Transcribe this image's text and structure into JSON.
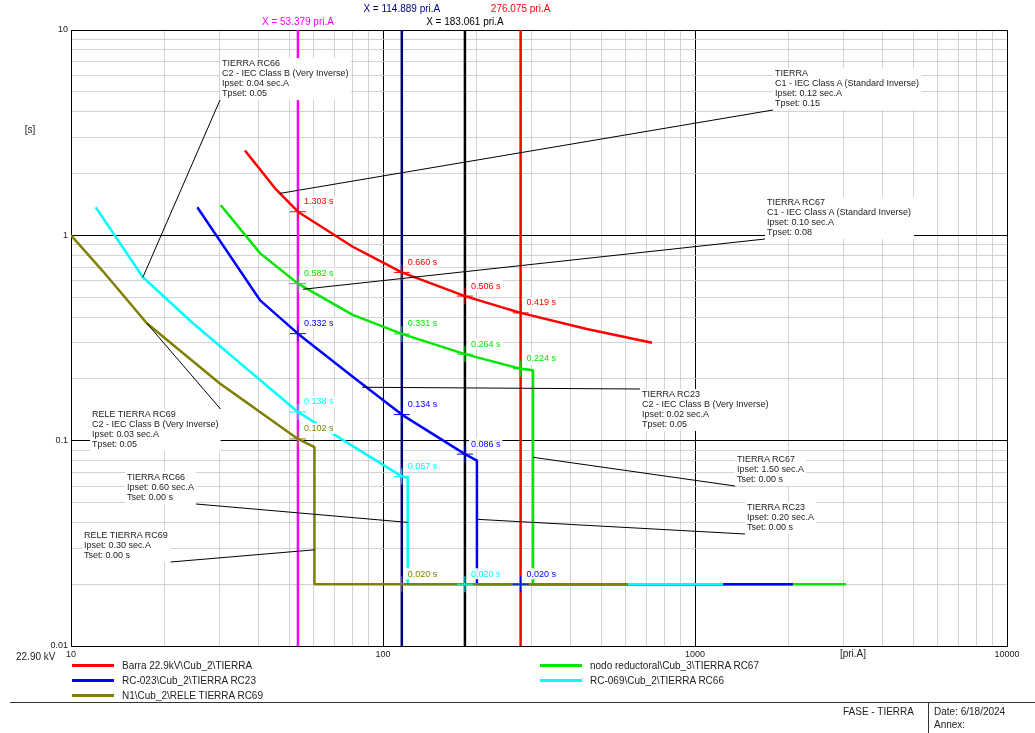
{
  "chart_data": {
    "type": "line",
    "xlabel": "[pri.A]",
    "ylabel": "[s]",
    "log": "xy",
    "grid": true,
    "legend": "bottom",
    "xlim": [
      10,
      10000
    ],
    "ylim": [
      0.01,
      10
    ],
    "xticks": [
      10,
      {
        "value": 20,
        "label": null
      },
      {
        "value": 30,
        "label": null
      },
      {
        "value": 40,
        "label": null
      },
      {
        "value": 50,
        "label": null
      },
      {
        "value": 60,
        "label": null
      },
      {
        "value": 70,
        "label": null
      },
      {
        "value": 80,
        "label": null
      },
      {
        "value": 90,
        "label": null
      },
      100,
      {
        "value": 200,
        "label": null
      },
      {
        "value": 300,
        "label": null
      },
      {
        "value": 400,
        "label": null
      },
      {
        "value": 500,
        "label": null
      },
      {
        "value": 600,
        "label": null
      },
      {
        "value": 700,
        "label": null
      },
      {
        "value": 800,
        "label": null
      },
      {
        "value": 900,
        "label": null
      },
      1000,
      {
        "value": 2000,
        "label": null
      },
      {
        "value": 3000,
        "label": null
      },
      {
        "value": 4000,
        "label": null
      },
      {
        "value": 5000,
        "label": null
      },
      {
        "value": 6000,
        "label": null
      },
      {
        "value": 7000,
        "label": null
      },
      {
        "value": 8000,
        "label": null
      },
      {
        "value": 9000,
        "label": null
      },
      10000
    ],
    "yticks": [
      0.01,
      {
        "value": 0.02,
        "label": null
      },
      {
        "value": 0.03,
        "label": null
      },
      {
        "value": 0.04,
        "label": null
      },
      {
        "value": 0.05,
        "label": null
      },
      {
        "value": 0.06,
        "label": null
      },
      {
        "value": 0.07,
        "label": null
      },
      {
        "value": 0.08,
        "label": null
      },
      {
        "value": 0.09,
        "label": null
      },
      0.1,
      {
        "value": 0.2,
        "label": null
      },
      {
        "value": 0.3,
        "label": null
      },
      {
        "value": 0.4,
        "label": null
      },
      {
        "value": 0.5,
        "label": null
      },
      {
        "value": 0.6,
        "label": null
      },
      {
        "value": 0.7,
        "label": null
      },
      {
        "value": 0.8,
        "label": null
      },
      {
        "value": 0.9,
        "label": null
      },
      1,
      {
        "value": 2,
        "label": null
      },
      {
        "value": 3,
        "label": null
      },
      {
        "value": 4,
        "label": null
      },
      {
        "value": 5,
        "label": null
      },
      {
        "value": 6,
        "label": null
      },
      {
        "value": 7,
        "label": null
      },
      {
        "value": 8,
        "label": null
      },
      {
        "value": 9,
        "label": null
      },
      10
    ],
    "series": [
      {
        "name": "Barra 22.9kV\\Cub_2\\TIERRA",
        "color": "#ff0000",
        "x": [
          36.1,
          45,
          53.379,
          80,
          114.889,
          183.061,
          276.075,
          450,
          728
        ],
        "values": [
          2.59,
          1.7,
          1.303,
          0.88,
          0.66,
          0.506,
          0.419,
          0.35,
          0.3
        ],
        "value_labels": [
          null,
          null,
          "1.303 s",
          null,
          "0.660 s",
          "0.506 s",
          "0.419 s",
          null,
          null
        ]
      },
      {
        "name": "nodo reductoral\\Cub_3\\TIERRA RC67",
        "color": "#00e600",
        "x": [
          30.2,
          40.4,
          53.379,
          80,
          114.889,
          183.061,
          276.075,
          302.6,
          302.6,
          3048
        ],
        "values": [
          1.4,
          0.817,
          0.582,
          0.41,
          0.331,
          0.264,
          0.224,
          0.22,
          0.02,
          0.02
        ],
        "value_labels": [
          null,
          null,
          "0.582 s",
          null,
          "0.331 s",
          "0.264 s",
          "0.224 s",
          null,
          null,
          null
        ]
      },
      {
        "name": "RC-023\\Cub_2\\TIERRA RC23",
        "color": "#0000ff",
        "x": [
          25.4,
          40.4,
          53.379,
          80,
          114.889,
          183.061,
          200,
          200,
          276.075,
          2060
        ],
        "values": [
          1.37,
          0.482,
          0.332,
          0.205,
          0.134,
          0.086,
          0.08,
          0.02,
          0.02,
          0.02
        ],
        "value_labels": [
          null,
          null,
          "0.332 s",
          null,
          "0.134 s",
          "0.086 s",
          null,
          null,
          "0.020 s",
          null
        ]
      },
      {
        "name": "RC-069\\Cub_2\\TIERRA RC66",
        "color": "#00ffff",
        "x": [
          12,
          17,
          24.6,
          53.379,
          80,
          114.889,
          120,
          120,
          183.061,
          1230
        ],
        "values": [
          1.37,
          0.625,
          0.373,
          0.138,
          0.094,
          0.067,
          0.066,
          0.02,
          0.02,
          0.02
        ],
        "value_labels": [
          null,
          null,
          null,
          "0.138 s",
          null,
          "0.067 s",
          null,
          null,
          "0.020 s",
          null
        ]
      },
      {
        "name": "N1\\Cub_2\\RELE TIERRA RC69",
        "color": "#808000",
        "x": [
          10,
          12.66,
          17.5,
          30,
          53.379,
          60.3,
          60.3,
          114.889,
          610
        ],
        "values": [
          1.0,
          0.668,
          0.373,
          0.19,
          0.102,
          0.093,
          0.02,
          0.02,
          0.02
        ],
        "value_labels": [
          null,
          null,
          null,
          null,
          "0.102 s",
          null,
          null,
          "0.020 s",
          null
        ]
      }
    ],
    "ref_lines": [
      {
        "axis": "x",
        "value": 53.379,
        "label": "X = 53.379 pri.A",
        "color": "#ff00ff"
      },
      {
        "axis": "x",
        "value": 114.889,
        "label": "X = 114.889 pri.A",
        "color": "#000080"
      },
      {
        "axis": "x",
        "value": 183.061,
        "label": "X = 183.061 pri.A",
        "color": "#000000"
      },
      {
        "axis": "x",
        "value": 276.075,
        "label": "276.075 pri.A",
        "color": "#ff0000"
      }
    ],
    "annotations": [
      {
        "text": "TIERRA RC66\nC2 - IEC Class B (Very Inverse)\nIpset: 0.04 sec.A\nTpset: 0.05",
        "x": 17,
        "y": 0.625
      },
      {
        "text": "TIERRA\nC1 - IEC Class A (Standard Inverse)\nIpset: 0.12 sec.A\nTpset: 0.15",
        "x": 46.7,
        "y": 1.6
      },
      {
        "text": "TIERRA RC67\nC1 - IEC Class A (Standard Inverse)\nIpset: 0.10 sec.A\nTpset: 0.08",
        "x": 55.4,
        "y": 0.546
      },
      {
        "text": "TIERRA RC23\nC2 - IEC Class B (Very Inverse)\nIpset: 0.02 sec.A\nTpset: 0.05",
        "x": 85.7,
        "y": 0.182
      },
      {
        "text": "RELE TIERRA RC69\nC2 - IEC Class B (Very Inverse)\nIpset: 0.03 sec.A\nTpset: 0.05",
        "x": 17.5,
        "y": 0.373
      },
      {
        "text": "TIERRA RC67\nIpset: 1.50 sec.A\nTset: 0.00 s",
        "x": 302.6,
        "y": 0.083
      },
      {
        "text": "TIERRA RC66\nIpset: 0.60 sec.A\nTset: 0.00 s",
        "x": 120,
        "y": 0.04
      },
      {
        "text": "TIERRA RC23\nIpset: 0.20 sec.A\nTset: 0.00 s",
        "x": 200,
        "y": 0.0414
      },
      {
        "text": "RELE TIERRA RC69\nIpset: 0.30 sec.A\nTset: 0.00 s",
        "x": 60.3,
        "y": 0.0294
      },
      "22.90 kV",
      "FASE - TIERRA",
      "Date: 6/18/2024",
      "Annex:"
    ]
  }
}
